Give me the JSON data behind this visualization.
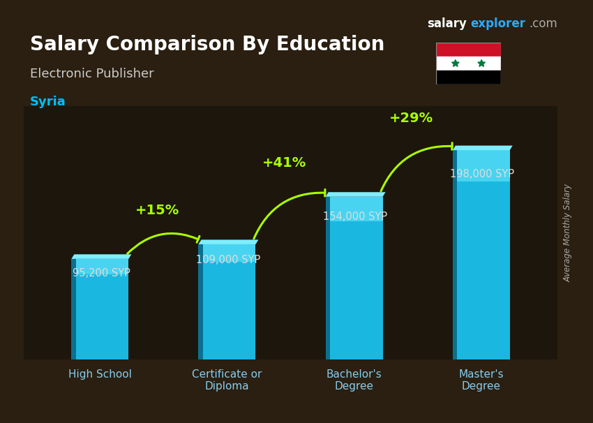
{
  "title": "Salary Comparison By Education",
  "subtitle": "Electronic Publisher",
  "country": "Syria",
  "ylabel": "Average Monthly Salary",
  "categories": [
    "High School",
    "Certificate or\nDiploma",
    "Bachelor's\nDegree",
    "Master's\nDegree"
  ],
  "values": [
    95200,
    109000,
    154000,
    198000
  ],
  "value_labels": [
    "95,200 SYP",
    "109,000 SYP",
    "154,000 SYP",
    "198,000 SYP"
  ],
  "pct_labels": [
    "+15%",
    "+41%",
    "+29%"
  ],
  "bar_color_top": "#29d0f0",
  "bar_color_bottom": "#1a90c0",
  "bar_color_side": "#0e6080",
  "background_color": "#1a1a2e",
  "title_color": "#ffffff",
  "subtitle_color": "#cccccc",
  "country_color": "#00bfff",
  "value_label_color": "#dddddd",
  "pct_color": "#aaff00",
  "arrow_color": "#aaff00",
  "ylabel_color": "#aaaaaa",
  "brand_salary_color": "#ffffff",
  "brand_explorer_color": "#00aaff",
  "brand_com_color": "#aaaaaa",
  "ylim": [
    0,
    240000
  ],
  "figsize": [
    8.5,
    6.06
  ],
  "dpi": 100
}
